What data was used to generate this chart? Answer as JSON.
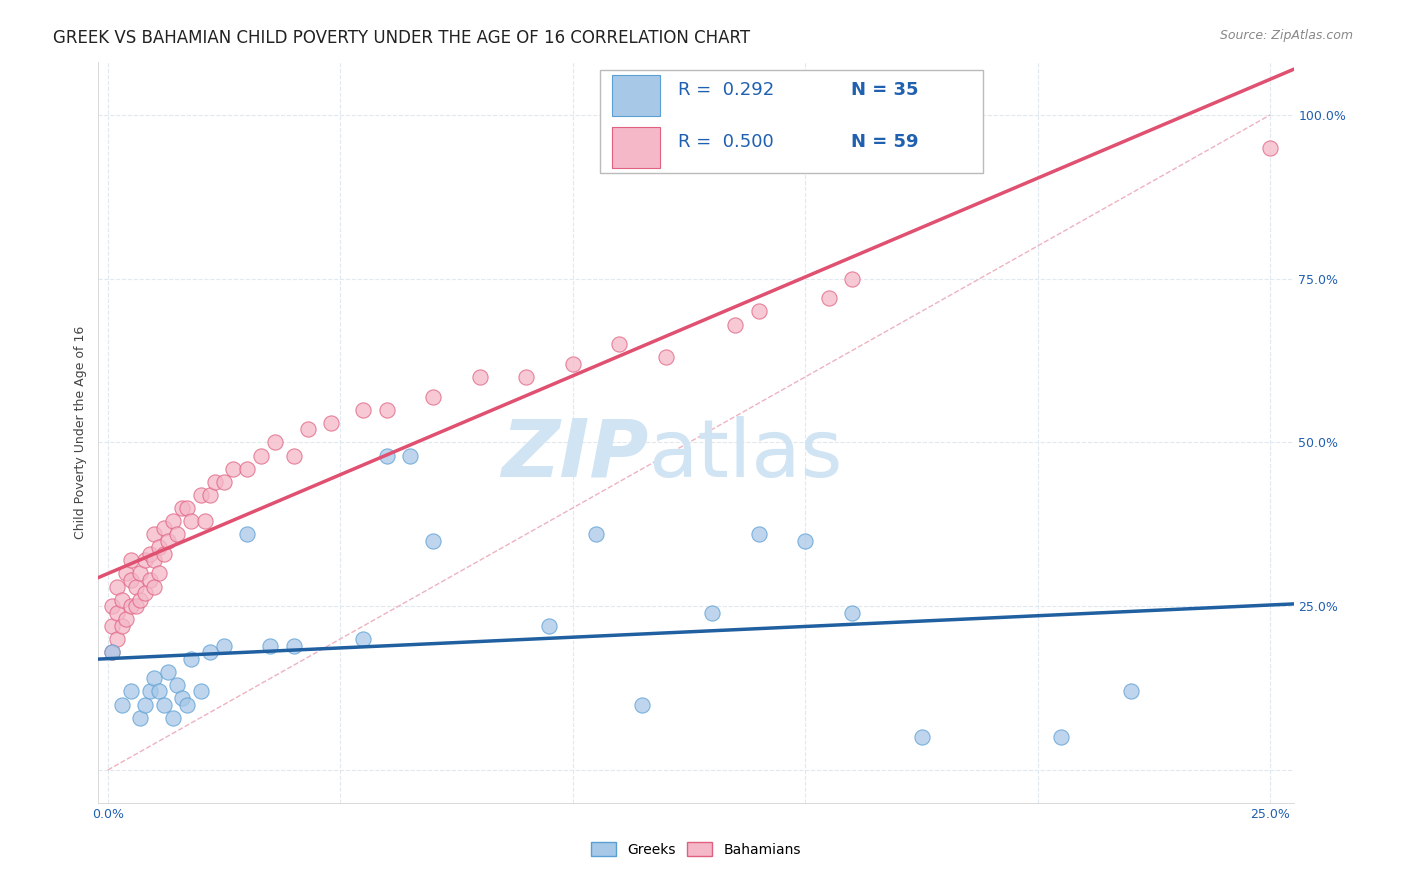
{
  "title": "GREEK VS BAHAMIAN CHILD POVERTY UNDER THE AGE OF 16 CORRELATION CHART",
  "source": "Source: ZipAtlas.com",
  "ylabel": "Child Poverty Under the Age of 16",
  "y_ticks": [
    0.0,
    0.25,
    0.5,
    0.75,
    1.0
  ],
  "y_tick_labels": [
    "",
    "25.0%",
    "50.0%",
    "75.0%",
    "100.0%"
  ],
  "x_ticks": [
    0.0,
    0.05,
    0.1,
    0.15,
    0.2,
    0.25
  ],
  "x_tick_labels": [
    "0.0%",
    "",
    "",
    "",
    "",
    "25.0%"
  ],
  "xlim": [
    -0.002,
    0.255
  ],
  "ylim": [
    -0.05,
    1.08
  ],
  "greek_color": "#a8c8e8",
  "bahamian_color": "#f4b8c8",
  "greek_edge_color": "#5a9fd4",
  "bahamian_edge_color": "#e06080",
  "greek_line_color": "#2060a0",
  "bahamian_line_color": "#e05070",
  "ref_line_color": "#e8a0b0",
  "legend_text_color": "#2060b0",
  "legend_R_color": "#222222",
  "background_color": "#ffffff",
  "grid_color": "#e0e8f0",
  "watermark_zip": "ZIP",
  "watermark_atlas": "atlas",
  "watermark_color": "#d0e4f4",
  "greek_x": [
    0.001,
    0.003,
    0.005,
    0.007,
    0.008,
    0.009,
    0.01,
    0.011,
    0.012,
    0.013,
    0.014,
    0.015,
    0.016,
    0.017,
    0.018,
    0.02,
    0.022,
    0.025,
    0.03,
    0.035,
    0.04,
    0.055,
    0.06,
    0.065,
    0.07,
    0.095,
    0.105,
    0.115,
    0.13,
    0.14,
    0.15,
    0.16,
    0.175,
    0.205,
    0.22
  ],
  "greek_y": [
    0.18,
    0.1,
    0.12,
    0.08,
    0.1,
    0.12,
    0.14,
    0.12,
    0.1,
    0.15,
    0.08,
    0.13,
    0.11,
    0.1,
    0.17,
    0.12,
    0.18,
    0.19,
    0.36,
    0.19,
    0.19,
    0.2,
    0.48,
    0.48,
    0.35,
    0.22,
    0.36,
    0.1,
    0.24,
    0.36,
    0.35,
    0.24,
    0.05,
    0.05,
    0.12
  ],
  "bahamian_x": [
    0.001,
    0.001,
    0.001,
    0.002,
    0.002,
    0.002,
    0.003,
    0.003,
    0.004,
    0.004,
    0.005,
    0.005,
    0.005,
    0.006,
    0.006,
    0.007,
    0.007,
    0.008,
    0.008,
    0.009,
    0.009,
    0.01,
    0.01,
    0.01,
    0.011,
    0.011,
    0.012,
    0.012,
    0.013,
    0.014,
    0.015,
    0.016,
    0.017,
    0.018,
    0.02,
    0.021,
    0.022,
    0.023,
    0.025,
    0.027,
    0.03,
    0.033,
    0.036,
    0.04,
    0.043,
    0.048,
    0.055,
    0.06,
    0.07,
    0.08,
    0.09,
    0.1,
    0.11,
    0.12,
    0.135,
    0.14,
    0.155,
    0.16,
    0.25
  ],
  "bahamian_y": [
    0.18,
    0.22,
    0.25,
    0.2,
    0.24,
    0.28,
    0.22,
    0.26,
    0.23,
    0.3,
    0.25,
    0.29,
    0.32,
    0.25,
    0.28,
    0.26,
    0.3,
    0.27,
    0.32,
    0.29,
    0.33,
    0.28,
    0.32,
    0.36,
    0.3,
    0.34,
    0.33,
    0.37,
    0.35,
    0.38,
    0.36,
    0.4,
    0.4,
    0.38,
    0.42,
    0.38,
    0.42,
    0.44,
    0.44,
    0.46,
    0.46,
    0.48,
    0.5,
    0.48,
    0.52,
    0.53,
    0.55,
    0.55,
    0.57,
    0.6,
    0.6,
    0.62,
    0.65,
    0.63,
    0.68,
    0.7,
    0.72,
    0.75,
    0.95
  ],
  "title_fontsize": 12,
  "source_fontsize": 9,
  "axis_label_fontsize": 9,
  "tick_fontsize": 9,
  "legend_fontsize": 13,
  "watermark_fontsize_zip": 58,
  "watermark_fontsize_atlas": 58
}
